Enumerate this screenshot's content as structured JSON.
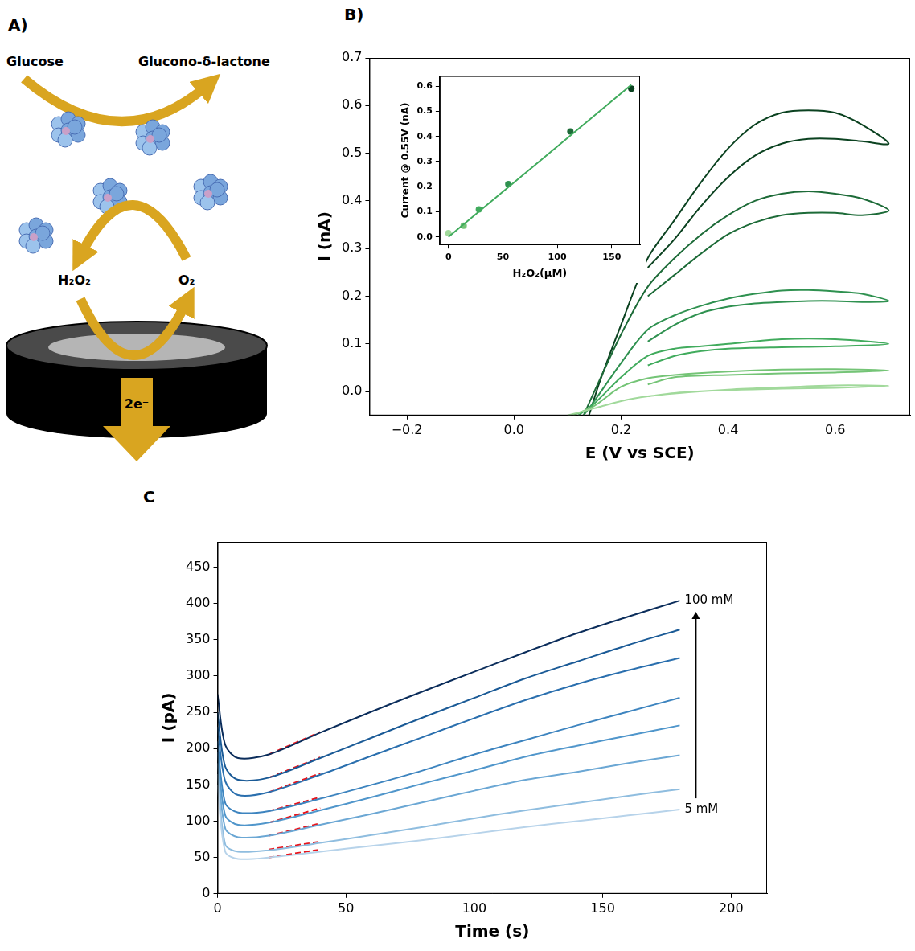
{
  "diagram": {
    "panel": "A)",
    "substrate": "Glucose",
    "product": "Glucono-δ-lactone",
    "peroxide": "H₂O₂",
    "oxygen": "O₂",
    "electrons": "2e⁻"
  },
  "chart_data": [
    {
      "panel": "B)",
      "type": "line",
      "x_label": "E (V vs SCE)",
      "y_label": "I (nA)",
      "xlim": [
        -0.27,
        0.74
      ],
      "ylim": [
        -0.05,
        0.7
      ],
      "xticks": [
        {
          "value": -0.2,
          "label": "−0.2"
        },
        {
          "value": 0,
          "label": "0.0"
        },
        0.2,
        0.4,
        0.6
      ],
      "yticks": [
        {
          "value": 0,
          "label": "0.0"
        },
        0.1,
        0.2,
        0.3,
        0.4,
        0.5,
        0.6,
        0.7
      ],
      "grid": false,
      "series": [
        {
          "color": "#a1d99b",
          "x": [
            0.25,
            0.3,
            0.4,
            0.5,
            0.6,
            0.7,
            0.6,
            0.5,
            0.4,
            0.3,
            0.25,
            0.2,
            0.15,
            0.1
          ],
          "values": [
            -0.01,
            -0.003,
            0.003,
            0.006,
            0.008,
            0.012,
            0.013,
            0.009,
            0.004,
            -0.004,
            -0.01,
            -0.02,
            -0.035,
            -0.05
          ]
        },
        {
          "color": "#74c476",
          "x": [
            0.25,
            0.3,
            0.4,
            0.5,
            0.6,
            0.7,
            0.6,
            0.5,
            0.4,
            0.3,
            0.25,
            0.2,
            0.15,
            0.11
          ],
          "values": [
            0.015,
            0.03,
            0.035,
            0.038,
            0.04,
            0.044,
            0.047,
            0.046,
            0.042,
            0.035,
            0.028,
            0.01,
            -0.03,
            -0.05
          ]
        },
        {
          "color": "#41ab5d",
          "x": [
            0.25,
            0.3,
            0.35,
            0.4,
            0.5,
            0.6,
            0.7,
            0.6,
            0.5,
            0.4,
            0.35,
            0.3,
            0.25,
            0.2,
            0.15,
            0.12
          ],
          "values": [
            0.055,
            0.075,
            0.085,
            0.09,
            0.093,
            0.095,
            0.1,
            0.11,
            0.11,
            0.1,
            0.095,
            0.09,
            0.075,
            0.03,
            -0.025,
            -0.05
          ]
        },
        {
          "color": "#2f9150",
          "x": [
            0.25,
            0.3,
            0.35,
            0.4,
            0.45,
            0.5,
            0.55,
            0.6,
            0.65,
            0.7,
            0.65,
            0.6,
            0.55,
            0.5,
            0.45,
            0.4,
            0.35,
            0.3,
            0.25,
            0.2,
            0.15,
            0.13
          ],
          "values": [
            0.105,
            0.14,
            0.165,
            0.178,
            0.185,
            0.188,
            0.19,
            0.19,
            0.188,
            0.19,
            0.205,
            0.21,
            0.213,
            0.212,
            0.205,
            0.195,
            0.18,
            0.16,
            0.13,
            0.06,
            -0.02,
            -0.05
          ]
        },
        {
          "color": "#1d6b38",
          "x": [
            0.25,
            0.3,
            0.35,
            0.4,
            0.45,
            0.5,
            0.55,
            0.6,
            0.65,
            0.7,
            0.65,
            0.6,
            0.55,
            0.5,
            0.45,
            0.4,
            0.35,
            0.3,
            0.25,
            0.2,
            0.15,
            0.13
          ],
          "values": [
            0.2,
            0.245,
            0.29,
            0.33,
            0.355,
            0.37,
            0.375,
            0.375,
            0.37,
            0.38,
            0.405,
            0.415,
            0.42,
            0.415,
            0.4,
            0.37,
            0.33,
            0.28,
            0.22,
            0.12,
            0.0,
            -0.05
          ]
        },
        {
          "color": "#0b4220",
          "x": [
            0.25,
            0.3,
            0.35,
            0.4,
            0.45,
            0.5,
            0.55,
            0.6,
            0.65,
            0.7,
            0.65,
            0.6,
            0.55,
            0.5,
            0.45,
            0.4,
            0.35,
            0.3,
            0.25,
            0.2,
            0.16,
            0.14
          ],
          "values": [
            0.26,
            0.32,
            0.39,
            0.45,
            0.495,
            0.52,
            0.53,
            0.53,
            0.525,
            0.52,
            0.56,
            0.585,
            0.59,
            0.585,
            0.56,
            0.51,
            0.44,
            0.36,
            0.28,
            0.14,
            0.02,
            -0.05
          ]
        }
      ]
    },
    {
      "type": "scatter",
      "x_label": "H₂O₂(μM)",
      "y_label": "Current @ 0.55V (nA)",
      "xlim": [
        -8,
        176
      ],
      "ylim": [
        -0.03,
        0.64
      ],
      "xticks": [
        0,
        50,
        100,
        150
      ],
      "yticks": [
        {
          "value": 0,
          "label": "0.0"
        },
        0.1,
        0.2,
        0.3,
        0.4,
        0.5,
        0.6
      ],
      "grid": false,
      "series": [
        {
          "type": "line",
          "color": "#41ab5d",
          "x": [
            0,
            168
          ],
          "values": [
            0.0,
            0.605
          ]
        },
        {
          "type": "scatter",
          "x": [
            0,
            14,
            28,
            55,
            112,
            168
          ],
          "values": [
            0.015,
            0.045,
            0.11,
            0.21,
            0.42,
            0.59
          ],
          "colors": [
            "#a1d99b",
            "#74c476",
            "#41ab5d",
            "#2f9150",
            "#1d6b38",
            "#0b4220"
          ]
        }
      ]
    },
    {
      "panel": "C",
      "type": "line",
      "x_label": "Time (s)",
      "y_label": "I (pA)",
      "xlim": [
        0,
        214
      ],
      "ylim": [
        0,
        485
      ],
      "xticks": [
        0,
        50,
        100,
        150,
        200
      ],
      "yticks": [
        0,
        50,
        100,
        150,
        200,
        250,
        300,
        350,
        400,
        450
      ],
      "grid": false,
      "annotations": [
        {
          "text": "100 mM"
        },
        {
          "text": "5 mM"
        }
      ],
      "series": [
        {
          "color": "#b7d3ea",
          "line_style": "solid",
          "x": [
            0,
            3,
            8,
            20,
            40,
            60,
            80,
            100,
            120,
            140,
            160,
            180
          ],
          "values": [
            150,
            58,
            48,
            50,
            58,
            66,
            74,
            83,
            92,
            100,
            108,
            116
          ]
        },
        {
          "color": "#8fbddf",
          "line_style": "solid",
          "x": [
            0,
            3,
            8,
            20,
            40,
            60,
            80,
            100,
            120,
            140,
            160,
            180
          ],
          "values": [
            165,
            68,
            58,
            60,
            70,
            81,
            92,
            104,
            115,
            125,
            135,
            144
          ]
        },
        {
          "color": "#6ba7d4",
          "line_style": "solid",
          "x": [
            0,
            3,
            8,
            20,
            40,
            60,
            80,
            100,
            120,
            140,
            160,
            180
          ],
          "values": [
            180,
            90,
            78,
            80,
            95,
            110,
            126,
            142,
            157,
            168,
            180,
            191
          ]
        },
        {
          "color": "#5096cb",
          "line_style": "solid",
          "x": [
            0,
            3,
            8,
            20,
            40,
            60,
            80,
            100,
            120,
            140,
            160,
            180
          ],
          "values": [
            195,
            108,
            95,
            98,
            115,
            133,
            152,
            170,
            189,
            204,
            218,
            232
          ]
        },
        {
          "color": "#3d84bf",
          "line_style": "solid",
          "x": [
            0,
            3,
            8,
            20,
            40,
            60,
            80,
            100,
            120,
            140,
            160,
            180
          ],
          "values": [
            210,
            125,
            112,
            114,
            131,
            150,
            170,
            192,
            212,
            232,
            251,
            270
          ]
        },
        {
          "color": "#2a6fae",
          "line_style": "solid",
          "x": [
            0,
            3,
            8,
            20,
            40,
            60,
            80,
            100,
            120,
            140,
            160,
            180
          ],
          "values": [
            230,
            155,
            136,
            140,
            164,
            190,
            216,
            242,
            267,
            289,
            308,
            325
          ]
        },
        {
          "color": "#1a5a96",
          "line_style": "solid",
          "x": [
            0,
            3,
            8,
            20,
            40,
            60,
            80,
            100,
            120,
            140,
            160,
            180
          ],
          "values": [
            250,
            175,
            157,
            160,
            187,
            215,
            243,
            270,
            297,
            320,
            343,
            364
          ]
        },
        {
          "color": "#0b2d5b",
          "line_style": "solid",
          "x": [
            0,
            3,
            8,
            20,
            40,
            60,
            80,
            100,
            120,
            140,
            160,
            180
          ],
          "values": [
            275,
            205,
            187,
            192,
            222,
            251,
            279,
            306,
            333,
            359,
            382,
            404
          ]
        },
        {
          "color": "#e8141b",
          "line_style": "dashed",
          "x": [
            20,
            40
          ],
          "values": [
            50,
            61
          ]
        },
        {
          "color": "#e8141b",
          "line_style": "dashed",
          "x": [
            20,
            40
          ],
          "values": [
            61,
            72
          ]
        },
        {
          "color": "#e8141b",
          "line_style": "dashed",
          "x": [
            20,
            40
          ],
          "values": [
            80,
            97
          ]
        },
        {
          "color": "#e8141b",
          "line_style": "dashed",
          "x": [
            20,
            40
          ],
          "values": [
            98,
            118
          ]
        },
        {
          "color": "#e8141b",
          "line_style": "dashed",
          "x": [
            20,
            40
          ],
          "values": [
            114,
            133
          ]
        },
        {
          "color": "#e8141b",
          "line_style": "dashed",
          "x": [
            20,
            40
          ],
          "values": [
            140,
            166
          ]
        },
        {
          "color": "#e8141b",
          "line_style": "dashed",
          "x": [
            20,
            40
          ],
          "values": [
            160,
            188
          ]
        },
        {
          "color": "#e8141b",
          "line_style": "dashed",
          "x": [
            20,
            40
          ],
          "values": [
            192,
            223
          ]
        }
      ]
    }
  ]
}
